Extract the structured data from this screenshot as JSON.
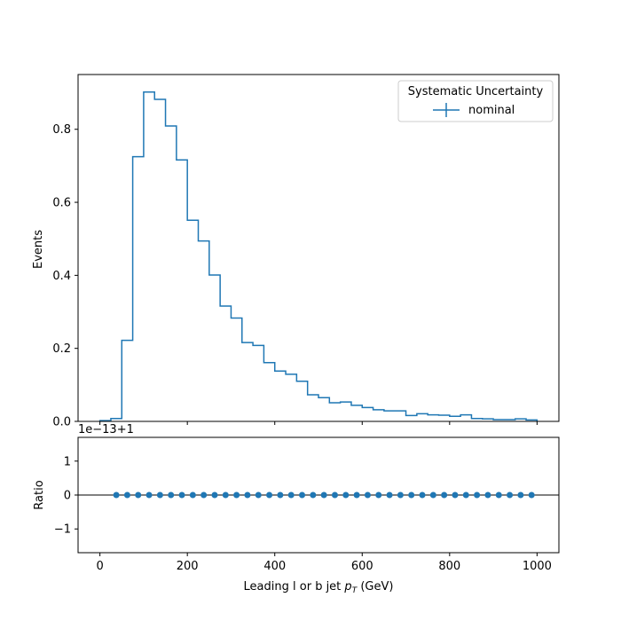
{
  "chart_data": [
    {
      "type": "line",
      "drawstyle": "steps",
      "xlabel": "Leading l or b jet",
      "xlabel_math": "p",
      "xlabel_math_sub": "T",
      "xlabel_unit": "(GeV)",
      "ylabel": "Events",
      "xlim": [
        -50,
        1050
      ],
      "ylim": [
        0,
        0.95
      ],
      "xticks": [
        0,
        200,
        400,
        600,
        800,
        1000
      ],
      "yticks": [
        0.0,
        0.2,
        0.4,
        0.6,
        0.8
      ],
      "ytick_labels": [
        "0.0",
        "0.2",
        "0.4",
        "0.6",
        "0.8"
      ],
      "legend": {
        "title": "Systematic Uncertainty",
        "entries": [
          "nominal"
        ],
        "placement": "top-right"
      },
      "series": [
        {
          "name": "nominal",
          "color": "#1f77b4",
          "bin_edges": [
            0,
            25,
            50,
            75,
            100,
            125,
            150,
            175,
            200,
            225,
            250,
            275,
            300,
            325,
            350,
            375,
            400,
            425,
            450,
            475,
            500,
            525,
            550,
            575,
            600,
            625,
            650,
            675,
            700,
            725,
            750,
            775,
            800,
            825,
            850,
            875,
            900,
            925,
            950,
            975,
            1000
          ],
          "values": [
            0.002,
            0.008,
            0.222,
            0.725,
            0.902,
            0.882,
            0.809,
            0.716,
            0.551,
            0.494,
            0.401,
            0.316,
            0.283,
            0.216,
            0.208,
            0.161,
            0.138,
            0.129,
            0.11,
            0.073,
            0.065,
            0.051,
            0.053,
            0.044,
            0.038,
            0.032,
            0.029,
            0.029,
            0.016,
            0.021,
            0.018,
            0.017,
            0.014,
            0.018,
            0.008,
            0.007,
            0.005,
            0.005,
            0.007,
            0.004
          ]
        }
      ]
    },
    {
      "type": "scatter",
      "xlabel": "Leading l or b jet",
      "xlabel_math": "p",
      "xlabel_math_sub": "T",
      "xlabel_unit": "(GeV)",
      "ylabel": "Ratio",
      "offset_text": "1e−13+1",
      "xlim": [
        -50,
        1050
      ],
      "ylim": [
        -1.7,
        1.7
      ],
      "xticks": [
        0,
        200,
        400,
        600,
        800,
        1000
      ],
      "xtick_labels": [
        "0",
        "200",
        "400",
        "600",
        "800",
        "1000"
      ],
      "yticks": [
        -1,
        0,
        1
      ],
      "ytick_labels": [
        "−1",
        "0",
        "1"
      ],
      "reference_line": 0,
      "series": [
        {
          "name": "nominal",
          "color": "#1f77b4",
          "x": [
            37.5,
            62.5,
            87.5,
            112.5,
            137.5,
            162.5,
            187.5,
            212.5,
            237.5,
            262.5,
            287.5,
            312.5,
            337.5,
            362.5,
            387.5,
            412.5,
            437.5,
            462.5,
            487.5,
            512.5,
            537.5,
            562.5,
            587.5,
            612.5,
            637.5,
            662.5,
            687.5,
            712.5,
            737.5,
            762.5,
            787.5,
            812.5,
            837.5,
            862.5,
            887.5,
            912.5,
            937.5,
            962.5,
            987.5
          ],
          "y": [
            0,
            0,
            0,
            0,
            0,
            0,
            0,
            0,
            0,
            0,
            0,
            0,
            0,
            0,
            0,
            0,
            0,
            0,
            0,
            0,
            0,
            0,
            0,
            0,
            0,
            0,
            0,
            0,
            0,
            0,
            0,
            0,
            0,
            0,
            0,
            0,
            0,
            0,
            0
          ]
        }
      ]
    }
  ]
}
